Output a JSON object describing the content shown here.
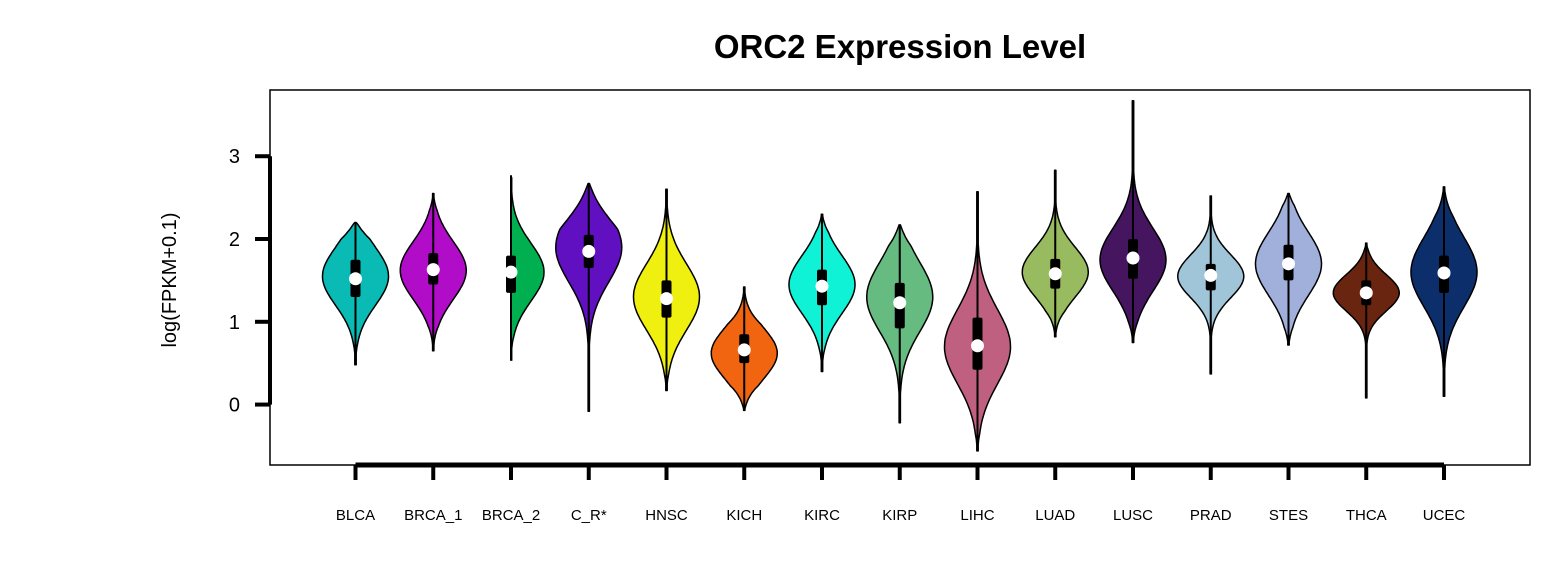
{
  "chart_data": {
    "type": "violin",
    "title": "ORC2 Expression Level",
    "ylabel": "log(FPKM+0.1)",
    "xlabel": "",
    "ylim": [
      -0.73,
      3.8
    ],
    "yticks": [
      0,
      1,
      2,
      3
    ],
    "grid": false,
    "legend": "none",
    "categories": [
      "BLCA",
      "BRCA_1",
      "BRCA_2",
      "C_R*",
      "HNSC",
      "KICH",
      "KIRC",
      "KIRP",
      "LIHC",
      "LUAD",
      "LUSC",
      "PRAD",
      "STES",
      "THCA",
      "UCEC"
    ],
    "series": [
      {
        "min": 0.48,
        "max": 2.2,
        "q1": 1.3,
        "median": 1.52,
        "q3": 1.75,
        "peak": 1.55,
        "spread": 0.35,
        "tail_lo": 0.28,
        "tail_hi": 0.2,
        "color": "#0ABAB5"
      },
      {
        "min": 0.65,
        "max": 2.55,
        "q1": 1.45,
        "median": 1.63,
        "q3": 1.83,
        "peak": 1.62,
        "spread": 0.35,
        "tail_lo": 0.3,
        "tail_hi": 0.2,
        "color": "#B10DC9"
      },
      {
        "min": 0.53,
        "max": 2.77,
        "q1": 1.35,
        "median": 1.6,
        "q3": 1.8,
        "peak": 1.6,
        "spread": 0.35,
        "tail_lo": 0.3,
        "tail_hi": 0.15,
        "color": "#00B050"
      },
      {
        "min": -0.08,
        "max": 2.67,
        "q1": 1.65,
        "median": 1.85,
        "q3": 2.05,
        "peak": 1.9,
        "spread": 0.42,
        "tail_lo": 0.15,
        "tail_hi": 0.55,
        "color": "#6010C0"
      },
      {
        "min": 0.17,
        "max": 2.6,
        "q1": 1.05,
        "median": 1.28,
        "q3": 1.5,
        "peak": 1.3,
        "spread": 0.4,
        "tail_lo": 0.2,
        "tail_hi": 0.15,
        "color": "#F0F010"
      },
      {
        "min": -0.07,
        "max": 1.42,
        "q1": 0.5,
        "median": 0.66,
        "q3": 0.85,
        "peak": 0.62,
        "spread": 0.3,
        "tail_lo": 0.3,
        "tail_hi": 0.45,
        "color": "#F26510"
      },
      {
        "min": 0.4,
        "max": 2.3,
        "q1": 1.2,
        "median": 1.43,
        "q3": 1.63,
        "peak": 1.45,
        "spread": 0.35,
        "tail_lo": 0.28,
        "tail_hi": 0.22,
        "color": "#10F2D5"
      },
      {
        "min": -0.22,
        "max": 2.17,
        "q1": 0.92,
        "median": 1.23,
        "q3": 1.47,
        "peak": 1.3,
        "spread": 0.42,
        "tail_lo": 0.18,
        "tail_hi": 0.25,
        "color": "#66BB80"
      },
      {
        "min": -0.56,
        "max": 2.57,
        "q1": 0.42,
        "median": 0.71,
        "q3": 1.05,
        "peak": 0.7,
        "spread": 0.45,
        "tail_lo": 0.2,
        "tail_hi": 0.1,
        "color": "#C06080"
      },
      {
        "min": 0.82,
        "max": 2.83,
        "q1": 1.4,
        "median": 1.58,
        "q3": 1.76,
        "peak": 1.6,
        "spread": 0.3,
        "tail_lo": 0.3,
        "tail_hi": 0.12,
        "color": "#98BB60"
      },
      {
        "min": 0.75,
        "max": 3.67,
        "q1": 1.52,
        "median": 1.77,
        "q3": 2.0,
        "peak": 1.75,
        "spread": 0.38,
        "tail_lo": 0.25,
        "tail_hi": 0.05,
        "color": "#451560"
      },
      {
        "min": 0.37,
        "max": 2.52,
        "q1": 1.38,
        "median": 1.56,
        "q3": 1.7,
        "peak": 1.55,
        "spread": 0.26,
        "tail_lo": 0.08,
        "tail_hi": 0.08,
        "color": "#A0C5D8"
      },
      {
        "min": 0.72,
        "max": 2.55,
        "q1": 1.5,
        "median": 1.7,
        "q3": 1.93,
        "peak": 1.7,
        "spread": 0.38,
        "tail_lo": 0.2,
        "tail_hi": 0.15,
        "color": "#A0B0DA"
      },
      {
        "min": 0.08,
        "max": 1.95,
        "q1": 1.2,
        "median": 1.35,
        "q3": 1.5,
        "peak": 1.35,
        "spread": 0.22,
        "tail_lo": 0.1,
        "tail_hi": 0.1,
        "color": "#6A2510"
      },
      {
        "min": 0.1,
        "max": 2.63,
        "q1": 1.35,
        "median": 1.59,
        "q3": 1.8,
        "peak": 1.6,
        "spread": 0.42,
        "tail_lo": 0.2,
        "tail_hi": 0.35,
        "color": "#0C2E6A"
      }
    ]
  }
}
